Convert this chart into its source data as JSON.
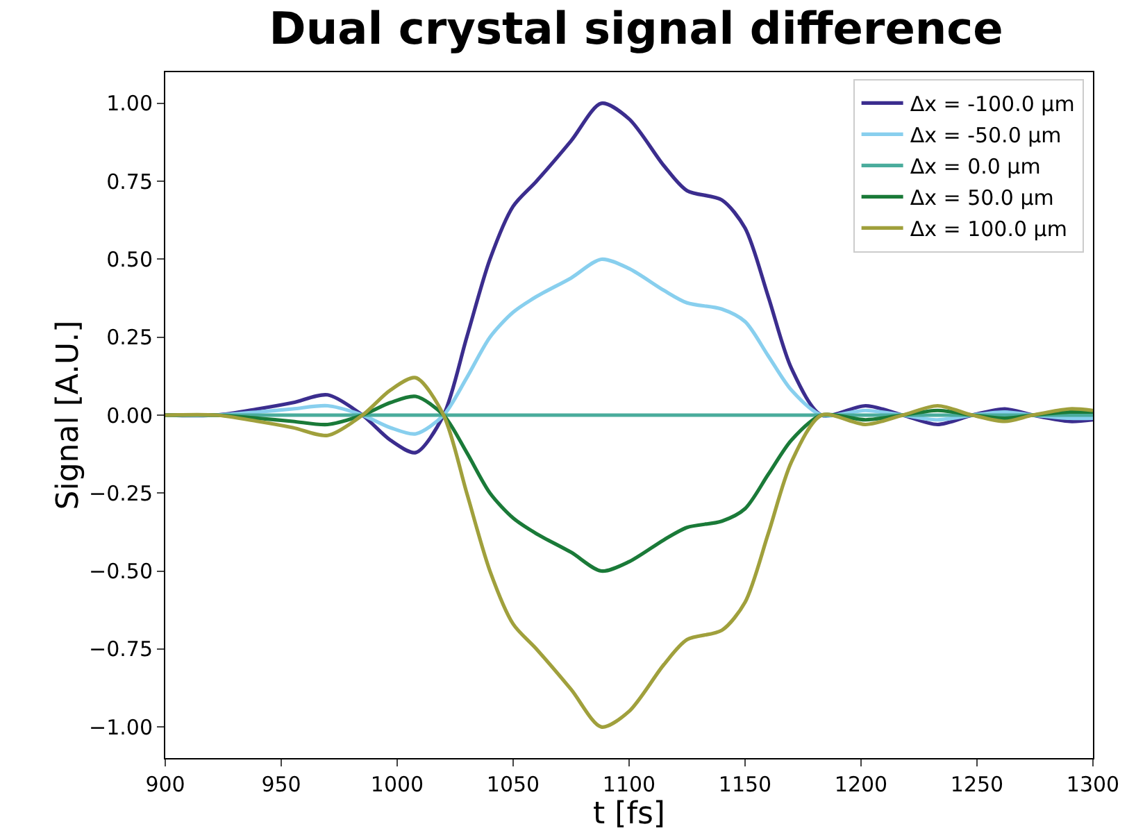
{
  "chart_data": {
    "type": "line",
    "title": "Dual crystal signal difference",
    "xlabel": "t [fs]",
    "ylabel": "Signal [A.U.]",
    "x": [
      900,
      922,
      940,
      955,
      970,
      985,
      997,
      1008,
      1020,
      1030,
      1040,
      1050,
      1060,
      1075,
      1088,
      1100,
      1115,
      1125,
      1140,
      1150,
      1160,
      1170,
      1183,
      1202,
      1218,
      1233,
      1248,
      1262,
      1274,
      1290,
      1300
    ],
    "series": [
      {
        "name": "Δx = -100.0 μm",
        "color": "#3b2d8e",
        "values": [
          0,
          0,
          0.02,
          0.04,
          0.065,
          0,
          -0.08,
          -0.12,
          0,
          0.25,
          0.5,
          0.67,
          0.75,
          0.88,
          1.0,
          0.95,
          0.8,
          0.72,
          0.69,
          0.6,
          0.38,
          0.15,
          0,
          0.03,
          0,
          -0.03,
          0,
          0.02,
          0,
          -0.02,
          -0.015
        ]
      },
      {
        "name": "Δx = -50.0 μm",
        "color": "#88cfee",
        "values": [
          0,
          0,
          0.01,
          0.02,
          0.03,
          0,
          -0.04,
          -0.06,
          0,
          0.12,
          0.25,
          0.33,
          0.38,
          0.44,
          0.5,
          0.47,
          0.4,
          0.36,
          0.34,
          0.3,
          0.19,
          0.08,
          0,
          0.015,
          0,
          -0.015,
          0,
          0.01,
          0,
          -0.01,
          -0.01
        ]
      },
      {
        "name": "Δx = 0.0 μm",
        "color": "#4aac9c",
        "values": [
          0,
          0,
          0,
          0,
          0,
          0,
          0,
          0,
          0,
          0,
          0,
          0,
          0,
          0,
          0,
          0,
          0,
          0,
          0,
          0,
          0,
          0,
          0,
          0,
          0,
          0,
          0,
          0,
          0,
          0,
          0
        ]
      },
      {
        "name": "Δx = 50.0 μm",
        "color": "#1a7a38",
        "values": [
          0,
          0,
          -0.01,
          -0.02,
          -0.03,
          0,
          0.04,
          0.06,
          0,
          -0.12,
          -0.25,
          -0.33,
          -0.38,
          -0.44,
          -0.5,
          -0.47,
          -0.4,
          -0.36,
          -0.34,
          -0.3,
          -0.19,
          -0.08,
          0,
          -0.015,
          0,
          0.015,
          0,
          -0.01,
          0,
          0.01,
          0.01
        ]
      },
      {
        "name": "Δx = 100.0 μm",
        "color": "#a0a03c",
        "values": [
          0,
          0,
          -0.02,
          -0.04,
          -0.065,
          0,
          0.08,
          0.12,
          0,
          -0.25,
          -0.5,
          -0.67,
          -0.75,
          -0.88,
          -1.0,
          -0.95,
          -0.8,
          -0.72,
          -0.69,
          -0.6,
          -0.38,
          -0.15,
          0,
          -0.03,
          0,
          0.03,
          0,
          -0.02,
          0,
          0.02,
          0.015
        ]
      }
    ],
    "xlim": [
      900,
      1300
    ],
    "xticks": [
      900,
      950,
      1000,
      1050,
      1100,
      1150,
      1200,
      1250,
      1300
    ],
    "ylim": [
      -1.1,
      1.1
    ],
    "yticks": [
      {
        "value": -1,
        "label": "−1.00"
      },
      {
        "value": -0.75,
        "label": "−0.75"
      },
      {
        "value": -0.5,
        "label": "−0.50"
      },
      {
        "value": -0.25,
        "label": "−0.25"
      },
      {
        "value": 0,
        "label": "0.00"
      },
      {
        "value": 0.25,
        "label": "0.25"
      },
      {
        "value": 0.5,
        "label": "0.50"
      },
      {
        "value": 0.75,
        "label": "0.75"
      },
      {
        "value": 1,
        "label": "1.00"
      }
    ],
    "grid": false,
    "legend": "top right",
    "line_style": "solid",
    "marker": "none"
  }
}
